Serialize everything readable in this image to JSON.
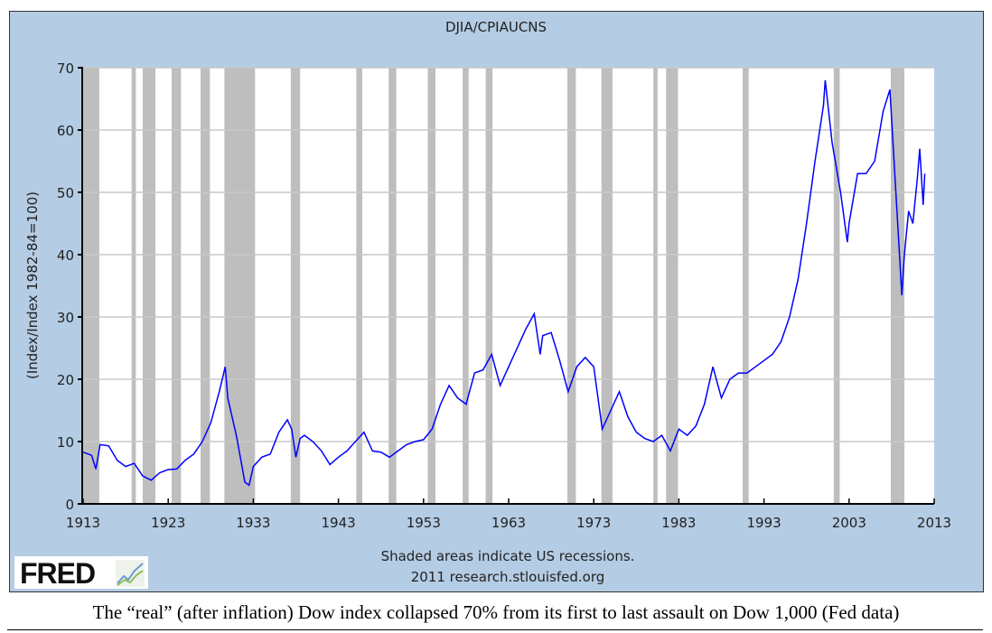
{
  "chart_data": {
    "type": "line",
    "title": "DJIA/CPIAUCNS",
    "xlabel": "",
    "ylabel": "(Index/Index 1982-84=100)",
    "xlim": [
      1913,
      2013
    ],
    "ylim": [
      0,
      70
    ],
    "xticks": [
      "1913",
      "1923",
      "1933",
      "1943",
      "1953",
      "1963",
      "1973",
      "1983",
      "1993",
      "2003",
      "2013"
    ],
    "yticks": [
      "0",
      "10",
      "20",
      "30",
      "40",
      "50",
      "60",
      "70"
    ],
    "grid": true,
    "line_color": "#0000ff",
    "recession_color": "#bebebe",
    "recessions": [
      [
        1913.0,
        1914.9
      ],
      [
        1918.7,
        1919.2
      ],
      [
        1920.0,
        1921.5
      ],
      [
        1923.4,
        1924.5
      ],
      [
        1926.8,
        1927.9
      ],
      [
        1929.6,
        1933.2
      ],
      [
        1937.4,
        1938.5
      ],
      [
        1945.1,
        1945.8
      ],
      [
        1948.9,
        1949.8
      ],
      [
        1953.5,
        1954.4
      ],
      [
        1957.6,
        1958.3
      ],
      [
        1960.3,
        1961.1
      ],
      [
        1969.9,
        1970.9
      ],
      [
        1973.9,
        1975.2
      ],
      [
        1980.0,
        1980.5
      ],
      [
        1981.5,
        1982.9
      ],
      [
        1990.5,
        1991.2
      ],
      [
        2001.2,
        2001.9
      ],
      [
        2007.9,
        2009.5
      ]
    ],
    "series": [
      {
        "x": [
          1913,
          1914,
          1914.5,
          1915,
          1916,
          1917,
          1918,
          1919,
          1920,
          1921,
          1922,
          1923,
          1924,
          1925,
          1926,
          1927,
          1928,
          1929,
          1929.7,
          1930,
          1931,
          1932,
          1932.5,
          1933,
          1934,
          1935,
          1936,
          1937,
          1937.5,
          1938,
          1938.5,
          1939,
          1940,
          1941,
          1942,
          1943,
          1944,
          1945,
          1946,
          1947,
          1948,
          1949,
          1950,
          1951,
          1952,
          1953,
          1954,
          1955,
          1956,
          1957,
          1958,
          1959,
          1960,
          1961,
          1962,
          1963,
          1964,
          1965,
          1966,
          1966.7,
          1967,
          1968,
          1969,
          1970,
          1971,
          1972,
          1973,
          1974,
          1975,
          1976,
          1977,
          1978,
          1979,
          1980,
          1981,
          1982,
          1983,
          1984,
          1985,
          1986,
          1987,
          1988,
          1989,
          1990,
          1991,
          1992,
          1993,
          1994,
          1995,
          1996,
          1997,
          1998,
          1999,
          2000,
          2000.2,
          2001,
          2002,
          2002.8,
          2003,
          2004,
          2005,
          2006,
          2007,
          2007.8,
          2008.5,
          2009.2,
          2009.5,
          2010,
          2010.5,
          2011,
          2011.3,
          2011.7,
          2011.9
        ],
        "values": [
          8.3,
          7.8,
          5.6,
          9.5,
          9.3,
          7,
          6,
          6.5,
          4.5,
          3.8,
          5,
          5.5,
          5.6,
          7,
          8,
          10,
          13,
          18,
          22,
          17,
          11,
          3.5,
          3,
          6,
          7.5,
          8,
          11.5,
          13.5,
          12,
          7.5,
          10.5,
          11,
          10,
          8.5,
          6.3,
          7.5,
          8.5,
          10,
          11.5,
          8.5,
          8.3,
          7.5,
          8.5,
          9.5,
          10,
          10.3,
          12,
          16,
          19,
          17,
          16,
          21,
          21.5,
          24,
          19,
          22,
          25,
          28,
          30.5,
          24,
          27,
          27.5,
          23,
          18,
          22,
          23.5,
          22,
          12,
          15,
          18,
          14,
          11.5,
          10.5,
          10,
          11,
          8.5,
          12,
          11,
          12.5,
          16,
          22,
          17,
          20,
          21,
          21,
          22,
          23,
          24,
          26,
          30,
          36,
          45,
          55,
          64,
          68,
          58,
          50,
          42,
          45,
          53,
          53,
          55,
          63,
          66.5,
          50,
          33.5,
          40,
          47,
          45,
          52,
          57,
          48,
          53
        ]
      }
    ],
    "notes": [
      "Shaded areas indicate US recessions.",
      "2011 research.stlouisfed.org"
    ]
  },
  "logo": {
    "text": "FRED"
  },
  "caption": "The “real” (after inflation) Dow index collapsed 70% from its first to last assault on Dow 1,000 (Fed data)"
}
